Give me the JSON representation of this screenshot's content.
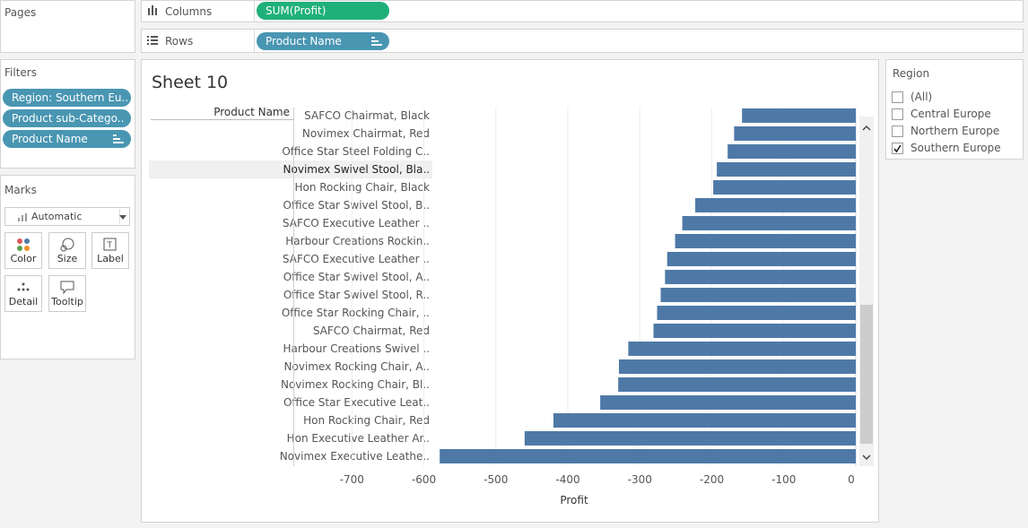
{
  "pages": {
    "title": "Pages"
  },
  "filters": {
    "title": "Filters",
    "items": [
      "Region: Southern Eu..",
      "Product sub-Catego..",
      "Product Name"
    ]
  },
  "marks": {
    "title": "Marks",
    "mark_type": "Automatic",
    "cards": [
      "Color",
      "Size",
      "Label",
      "Detail",
      "Tooltip"
    ]
  },
  "shelves": {
    "columns_label": "Columns",
    "columns_pill": "SUM(Profit)",
    "rows_label": "Rows",
    "rows_pill": "Product Name"
  },
  "sheet": {
    "title": "Sheet 10",
    "row_header": "Product Name"
  },
  "region_filter": {
    "title": "Region",
    "options": [
      {
        "label": "(All)",
        "checked": false
      },
      {
        "label": "Central Europe",
        "checked": false
      },
      {
        "label": "Northern Europe",
        "checked": false
      },
      {
        "label": "Southern Europe",
        "checked": true
      }
    ]
  },
  "colors": {
    "bar": "#4e79a7",
    "pill_blue": "#4996b2",
    "pill_green": "#1fb07a"
  },
  "chart_data": {
    "type": "bar",
    "orientation": "horizontal",
    "categories": [
      "SAFCO Chairmat, Black",
      "Novimex Chairmat, Red",
      "Office Star Steel Folding C..",
      "Novimex Swivel Stool, Bla..",
      "Hon Rocking Chair, Black",
      "Office Star Swivel Stool, B..",
      "SAFCO Executive Leather ..",
      "Harbour Creations Rockin..",
      "SAFCO Executive Leather ..",
      "Office Star Swivel Stool, A..",
      "Office Star Swivel Stool, R..",
      "Office Star Rocking Chair, ..",
      "SAFCO Chairmat, Red",
      "Harbour Creations Swivel ..",
      "Novimex Rocking Chair, A..",
      "Novimex Rocking Chair, Bl..",
      "Office Star Executive Leat..",
      "Hon Rocking Chair, Red",
      "Hon Executive Leather Ar..",
      "Novimex Executive Leathe.."
    ],
    "values": [
      -158,
      -169,
      -178,
      -193,
      -198,
      -223,
      -241,
      -251,
      -262,
      -265,
      -271,
      -276,
      -281,
      -316,
      -329,
      -330,
      -355,
      -420,
      -460,
      -578
    ],
    "xlabel": "Profit",
    "ylabel": "Product Name",
    "xlim": [
      -750,
      0
    ],
    "xticks": [
      -700,
      -600,
      -500,
      -400,
      -300,
      -200,
      -100,
      0
    ],
    "xtick_labels": [
      "-700",
      "-600",
      "-500",
      "-400",
      "-300",
      "-200",
      "-100",
      "0"
    ],
    "grid": true,
    "selected_category": "Novimex Swivel Stool, Bla.."
  }
}
